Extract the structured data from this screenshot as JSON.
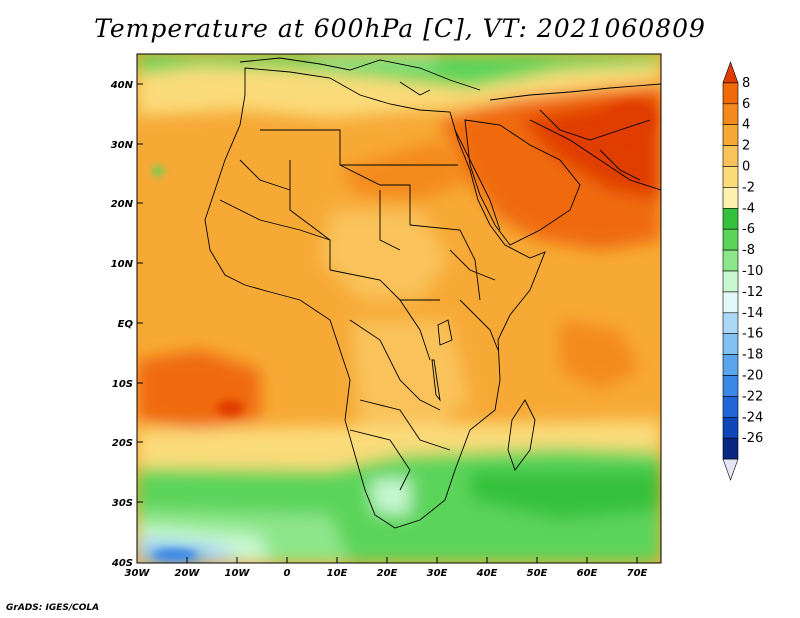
{
  "title": "Temperature at 600hPa [C], VT: 2021060809",
  "credit": "GrADS: IGES/COLA",
  "map": {
    "region": "Africa and Middle East",
    "lon_range": [
      -30,
      75
    ],
    "lat_range": [
      -40,
      45
    ],
    "lat_ticks": [
      "40N",
      "30N",
      "20N",
      "10N",
      "EQ",
      "10S",
      "20S",
      "30S",
      "40S"
    ],
    "lon_ticks": [
      "30W",
      "20W",
      "10W",
      "0",
      "10E",
      "20E",
      "30E",
      "40E",
      "50E",
      "60E",
      "70E"
    ]
  },
  "colorbar": {
    "labels": [
      "8",
      "6",
      "4",
      "2",
      "0",
      "-2",
      "-4",
      "-6",
      "-8",
      "-10",
      "-12",
      "-14",
      "-16",
      "-18",
      "-20",
      "-22",
      "-24",
      "-26"
    ],
    "colors": [
      "#e03c00",
      "#f06a0a",
      "#f48a1e",
      "#f7a936",
      "#f9c25a",
      "#fbdc7a",
      "#fdf0b0",
      "#35c13c",
      "#5bd45a",
      "#8ee68a",
      "#c8f7d0",
      "#e2f8f8",
      "#aad8f5",
      "#82c2f2",
      "#5aa6ee",
      "#3a88e6",
      "#1f66d6",
      "#0f46b8",
      "#0a2680",
      "#e6e4f7"
    ]
  }
}
